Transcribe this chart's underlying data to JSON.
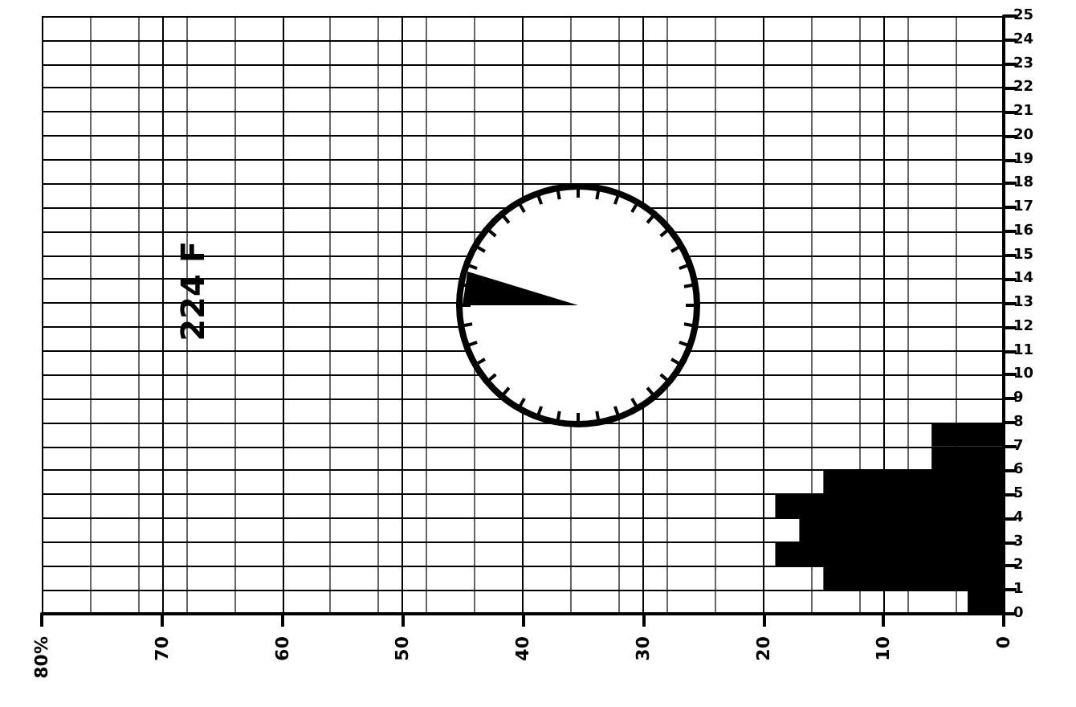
{
  "chart_data": {
    "type": "histogram",
    "title": "224 F",
    "orientation": "horizontal",
    "bins": [
      0,
      1,
      2,
      3,
      4,
      5,
      6,
      7,
      8,
      9,
      10,
      11,
      12,
      13,
      14,
      15,
      16,
      17,
      18,
      19,
      20,
      21,
      22,
      23,
      24,
      25
    ],
    "values": [
      3,
      15,
      19,
      17,
      19,
      15,
      6,
      6,
      0,
      0,
      0,
      0,
      0,
      0,
      0,
      0,
      0,
      0,
      0,
      0,
      0,
      0,
      0,
      0,
      0
    ],
    "color": "#000000",
    "xlim": [
      80,
      0
    ],
    "xticks": [
      {
        "value": 80,
        "label": "80%"
      },
      70,
      60,
      50,
      40,
      30,
      20,
      10,
      0
    ],
    "ylim": [
      0,
      25
    ],
    "yticks": [
      0,
      1,
      2,
      3,
      4,
      5,
      6,
      7,
      8,
      9,
      10,
      11,
      12,
      13,
      14,
      15,
      16,
      17,
      18,
      19,
      20,
      21,
      22,
      23,
      24,
      25
    ],
    "grid": true
  }
}
